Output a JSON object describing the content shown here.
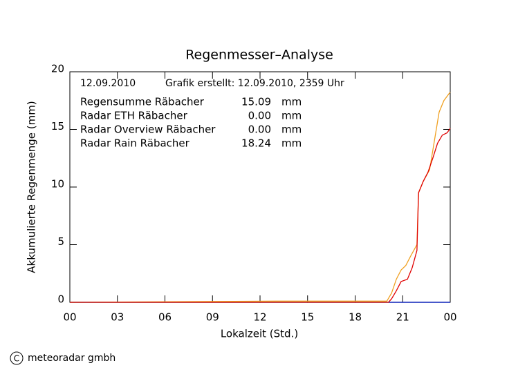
{
  "chart_data": {
    "type": "line",
    "title": "Regenmesser–Analyse",
    "date": "12.09.2010",
    "created": "Grafik erstellt: 12.09.2010, 2359 Uhr",
    "x_label": "Lokalzeit (Std.)",
    "y_label": "Akkumulierte Regenmenge (mm)",
    "unit": "mm",
    "xlim": [
      0,
      24
    ],
    "xticks": [
      {
        "value": 0,
        "label": "00"
      },
      {
        "value": 3,
        "label": "03"
      },
      {
        "value": 6,
        "label": "06"
      },
      {
        "value": 9,
        "label": "09"
      },
      12,
      15,
      18,
      21,
      {
        "value": 24,
        "label": "00"
      }
    ],
    "ylim": [
      0,
      20
    ],
    "yticks": [
      0,
      5,
      10,
      15,
      20
    ],
    "series": [
      {
        "name": "Regensumme Räbacher",
        "color": "#e00000",
        "total": 15.09,
        "x": [
          0,
          20.1,
          20.3,
          20.6,
          20.9,
          21.3,
          21.6,
          21.9,
          22.0,
          22.3,
          22.6,
          22.9,
          23.2,
          23.5,
          23.8,
          24
        ],
        "values": [
          0,
          0,
          0.3,
          1.0,
          1.8,
          2.0,
          3.0,
          4.5,
          9.5,
          10.5,
          11.3,
          12.5,
          13.8,
          14.5,
          14.7,
          15.09
        ]
      },
      {
        "name": "Radar ETH Räbacher",
        "color": "#00b000",
        "total": {
          "value": 0,
          "label": "0.00"
        },
        "x": [
          0,
          24
        ],
        "values": [
          0,
          0
        ]
      },
      {
        "name": "Radar Overview Räbacher",
        "color": "#0000d0",
        "total": {
          "value": 0,
          "label": "0.00"
        },
        "x": [
          0,
          24
        ],
        "values": [
          0,
          0
        ]
      },
      {
        "name": "Radar Rain Räbacher",
        "color": "#f0a020",
        "total": 18.24,
        "x": [
          0,
          13,
          20.0,
          20.3,
          20.6,
          20.9,
          21.2,
          21.5,
          21.9,
          22.0,
          22.3,
          22.7,
          23.0,
          23.3,
          23.6,
          24
        ],
        "values": [
          0,
          0.1,
          0.1,
          0.8,
          2.0,
          2.8,
          3.2,
          4.0,
          5.0,
          9.5,
          10.5,
          11.5,
          14.0,
          16.5,
          17.5,
          18.24
        ]
      }
    ],
    "footer": {
      "symbol": "C",
      "text": "meteoradar gmbh"
    }
  }
}
